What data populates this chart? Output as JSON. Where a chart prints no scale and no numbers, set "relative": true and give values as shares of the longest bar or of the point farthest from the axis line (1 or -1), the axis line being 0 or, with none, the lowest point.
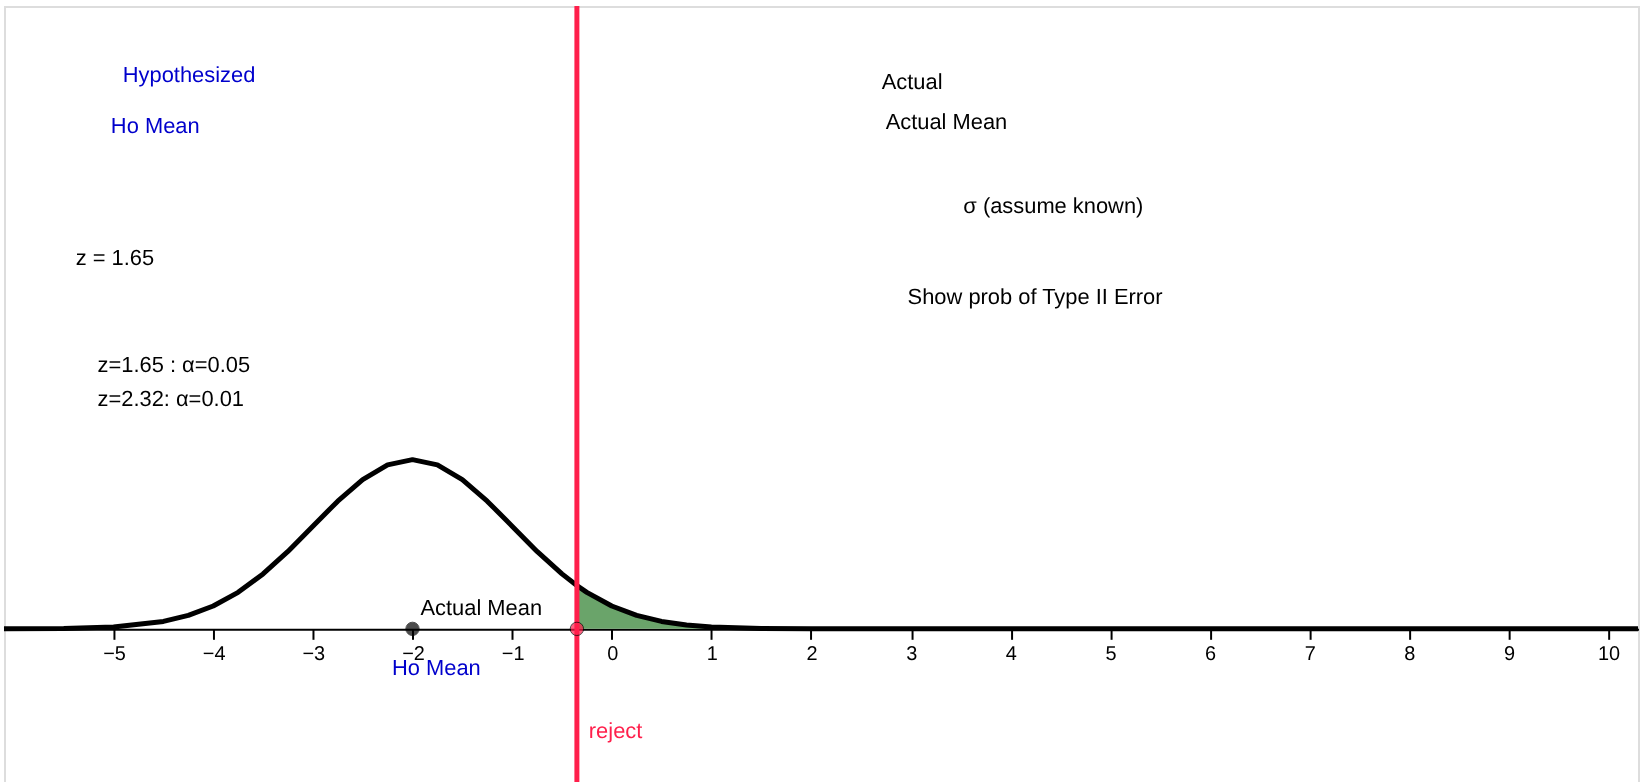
{
  "chart_data": {
    "type": "line",
    "relative": true,
    "grid": false,
    "tick_labels": "x",
    "marker": "none",
    "xlim": [
      -6.1,
      10.3
    ],
    "xticks": [
      -5,
      -4,
      -3,
      -2,
      -1,
      0,
      1,
      2,
      3,
      4,
      5,
      6,
      7,
      8,
      9,
      10
    ],
    "series": [
      {
        "color": "#000000",
        "x": [
          -6.1,
          -5.5,
          -5,
          -4.5,
          -4.25,
          -4,
          -3.75,
          -3.5,
          -3.25,
          -3,
          -2.75,
          -2.5,
          -2.25,
          -2,
          -1.75,
          -1.5,
          -1.25,
          -1,
          -0.75,
          -0.5,
          -0.35,
          -0.25,
          0,
          0.25,
          0.5,
          0.75,
          1,
          1.5,
          2,
          10.3
        ],
        "values": [
          0,
          0.002,
          0.011,
          0.044,
          0.08,
          0.135,
          0.216,
          0.325,
          0.458,
          0.607,
          0.755,
          0.882,
          0.969,
          1,
          0.969,
          0.882,
          0.755,
          0.607,
          0.458,
          0.325,
          0.256,
          0.216,
          0.135,
          0.08,
          0.044,
          0.023,
          0.011,
          0.002,
          0,
          0
        ]
      },
      {
        "type": "area",
        "color": "#5a9a5a",
        "x": [
          -0.35,
          -0.25,
          0,
          0.25,
          0.5,
          0.75,
          1,
          1.5,
          2
        ],
        "values": [
          0.256,
          0.216,
          0.135,
          0.08,
          0.044,
          0.023,
          0.011,
          0.002,
          0
        ]
      },
      {
        "type": "scatter",
        "marker": "circle",
        "color": "#000000",
        "x": [
          -2
        ],
        "values": [
          0
        ]
      },
      {
        "type": "scatter",
        "marker": "circle",
        "color": "#ff1f4b",
        "x": [
          -0.35
        ],
        "values": [
          0
        ]
      }
    ],
    "ref_lines": [
      {
        "axis": "x",
        "value": -0.35,
        "label": "reject",
        "color": "#ff1f4b"
      }
    ],
    "annotations": [
      "Hypothesized",
      "Ho Mean",
      "z = 1.65",
      "z=1.65 : α=0.05",
      "z=2.32:  α=0.01",
      "Actual",
      "Actual Mean",
      "σ (assume known)",
      "Show prob of Type II Error",
      {
        "text": "Actual Mean",
        "x": -2,
        "y": 0
      },
      {
        "text": "Ho Mean",
        "x": -2,
        "y": 0
      }
    ]
  }
}
